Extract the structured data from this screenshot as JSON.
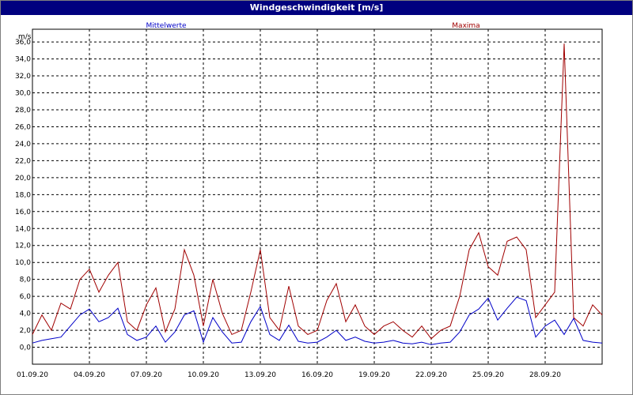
{
  "window": {
    "title": "Windgeschwindigkeit [m/s]"
  },
  "colors": {
    "titlebar": "#00007f",
    "mean": "#0000c8",
    "max": "#a00000",
    "grid": "#000000"
  },
  "chart_data": {
    "type": "line",
    "title": "Windgeschwindigkeit [m/s]",
    "ylabel": "m/s",
    "xlabel": "",
    "ylim": [
      -2.0,
      37.5
    ],
    "xlim": [
      "2020-09-01",
      "2020-10-01"
    ],
    "grid": true,
    "legend_position": "top",
    "yticks": [
      "0,0",
      "2,0",
      "4,0",
      "6,0",
      "8,0",
      "10,0",
      "12,0",
      "14,0",
      "16,0",
      "18,0",
      "20,0",
      "22,0",
      "24,0",
      "26,0",
      "28,0",
      "30,0",
      "32,0",
      "34,0",
      "36,0"
    ],
    "ytick_values": [
      0,
      2,
      4,
      6,
      8,
      10,
      12,
      14,
      16,
      18,
      20,
      22,
      24,
      26,
      28,
      30,
      32,
      34,
      36
    ],
    "xticks": [
      "01.09.20",
      "04.09.20",
      "07.09.20",
      "10.09.20",
      "13.09.20",
      "16.09.20",
      "19.09.20",
      "22.09.20",
      "25.09.20",
      "28.09.20"
    ],
    "xtick_values": [
      "2020-09-01",
      "2020-09-04",
      "2020-09-07",
      "2020-09-10",
      "2020-09-13",
      "2020-09-16",
      "2020-09-19",
      "2020-09-22",
      "2020-09-25",
      "2020-09-28"
    ],
    "series": [
      {
        "name": "Mittelwerte",
        "color": "#0000c8",
        "x": [
          "2020-09-01 00:00",
          "2020-09-01 12:00",
          "2020-09-02 00:00",
          "2020-09-02 12:00",
          "2020-09-03 00:00",
          "2020-09-03 12:00",
          "2020-09-04 00:00",
          "2020-09-04 12:00",
          "2020-09-05 00:00",
          "2020-09-05 12:00",
          "2020-09-06 00:00",
          "2020-09-06 12:00",
          "2020-09-07 00:00",
          "2020-09-07 12:00",
          "2020-09-08 00:00",
          "2020-09-08 12:00",
          "2020-09-09 00:00",
          "2020-09-09 12:00",
          "2020-09-10 00:00",
          "2020-09-10 12:00",
          "2020-09-11 00:00",
          "2020-09-11 12:00",
          "2020-09-12 00:00",
          "2020-09-12 12:00",
          "2020-09-13 00:00",
          "2020-09-13 12:00",
          "2020-09-14 00:00",
          "2020-09-14 12:00",
          "2020-09-15 00:00",
          "2020-09-15 12:00",
          "2020-09-16 00:00",
          "2020-09-16 12:00",
          "2020-09-17 00:00",
          "2020-09-17 12:00",
          "2020-09-18 00:00",
          "2020-09-18 12:00",
          "2020-09-19 00:00",
          "2020-09-19 12:00",
          "2020-09-20 00:00",
          "2020-09-20 12:00",
          "2020-09-21 00:00",
          "2020-09-21 12:00",
          "2020-09-22 00:00",
          "2020-09-22 12:00",
          "2020-09-23 00:00",
          "2020-09-23 12:00",
          "2020-09-24 00:00",
          "2020-09-24 12:00",
          "2020-09-25 00:00",
          "2020-09-25 12:00",
          "2020-09-26 00:00",
          "2020-09-26 12:00",
          "2020-09-27 00:00",
          "2020-09-27 12:00",
          "2020-09-28 00:00",
          "2020-09-28 12:00",
          "2020-09-29 00:00",
          "2020-09-29 12:00",
          "2020-09-30 00:00",
          "2020-09-30 12:00",
          "2020-10-01 00:00"
        ],
        "values": [
          0.5,
          0.8,
          1.0,
          1.2,
          2.5,
          3.8,
          4.5,
          3.0,
          3.5,
          4.6,
          1.5,
          0.8,
          1.2,
          2.5,
          0.6,
          1.8,
          3.8,
          4.3,
          0.6,
          3.5,
          1.8,
          0.5,
          0.6,
          3.0,
          4.8,
          1.5,
          0.8,
          2.6,
          0.7,
          0.5,
          0.6,
          1.2,
          2.0,
          0.8,
          1.2,
          0.7,
          0.5,
          0.6,
          0.8,
          0.5,
          0.4,
          0.6,
          0.3,
          0.5,
          0.6,
          1.8,
          3.8,
          4.5,
          5.8,
          3.2,
          4.6,
          5.9,
          5.5,
          1.2,
          2.5,
          3.2,
          1.5,
          3.4,
          0.8,
          0.6,
          0.5
        ]
      },
      {
        "name": "Maxima",
        "color": "#a00000",
        "x": [
          "2020-09-01 00:00",
          "2020-09-01 12:00",
          "2020-09-02 00:00",
          "2020-09-02 12:00",
          "2020-09-03 00:00",
          "2020-09-03 12:00",
          "2020-09-04 00:00",
          "2020-09-04 12:00",
          "2020-09-05 00:00",
          "2020-09-05 12:00",
          "2020-09-06 00:00",
          "2020-09-06 12:00",
          "2020-09-07 00:00",
          "2020-09-07 12:00",
          "2020-09-08 00:00",
          "2020-09-08 12:00",
          "2020-09-09 00:00",
          "2020-09-09 12:00",
          "2020-09-10 00:00",
          "2020-09-10 12:00",
          "2020-09-11 00:00",
          "2020-09-11 12:00",
          "2020-09-12 00:00",
          "2020-09-12 12:00",
          "2020-09-13 00:00",
          "2020-09-13 12:00",
          "2020-09-14 00:00",
          "2020-09-14 12:00",
          "2020-09-15 00:00",
          "2020-09-15 12:00",
          "2020-09-16 00:00",
          "2020-09-16 12:00",
          "2020-09-17 00:00",
          "2020-09-17 12:00",
          "2020-09-18 00:00",
          "2020-09-18 12:00",
          "2020-09-19 00:00",
          "2020-09-19 12:00",
          "2020-09-20 00:00",
          "2020-09-20 12:00",
          "2020-09-21 00:00",
          "2020-09-21 12:00",
          "2020-09-22 00:00",
          "2020-09-22 12:00",
          "2020-09-23 00:00",
          "2020-09-23 12:00",
          "2020-09-24 00:00",
          "2020-09-24 12:00",
          "2020-09-25 00:00",
          "2020-09-25 12:00",
          "2020-09-26 00:00",
          "2020-09-26 12:00",
          "2020-09-27 00:00",
          "2020-09-27 12:00",
          "2020-09-28 00:00",
          "2020-09-28 12:00",
          "2020-09-29 00:00",
          "2020-09-29 12:00",
          "2020-09-30 00:00",
          "2020-09-30 12:00",
          "2020-10-01 00:00"
        ],
        "values": [
          1.5,
          3.8,
          2.0,
          5.2,
          4.5,
          8.0,
          9.2,
          6.5,
          8.5,
          10.0,
          3.0,
          2.0,
          5.0,
          7.0,
          1.8,
          4.5,
          11.5,
          8.5,
          2.5,
          8.0,
          4.0,
          1.5,
          2.0,
          6.5,
          11.5,
          3.5,
          2.0,
          7.2,
          2.5,
          1.5,
          2.0,
          5.5,
          7.5,
          3.0,
          5.0,
          2.5,
          1.5,
          2.5,
          3.0,
          2.0,
          1.2,
          2.5,
          1.0,
          2.0,
          2.5,
          6.0,
          11.5,
          13.5,
          9.5,
          8.5,
          12.5,
          13.0,
          11.5,
          3.5,
          5.0,
          6.5,
          35.8,
          3.5,
          2.5,
          5.0,
          3.8
        ]
      }
    ]
  }
}
